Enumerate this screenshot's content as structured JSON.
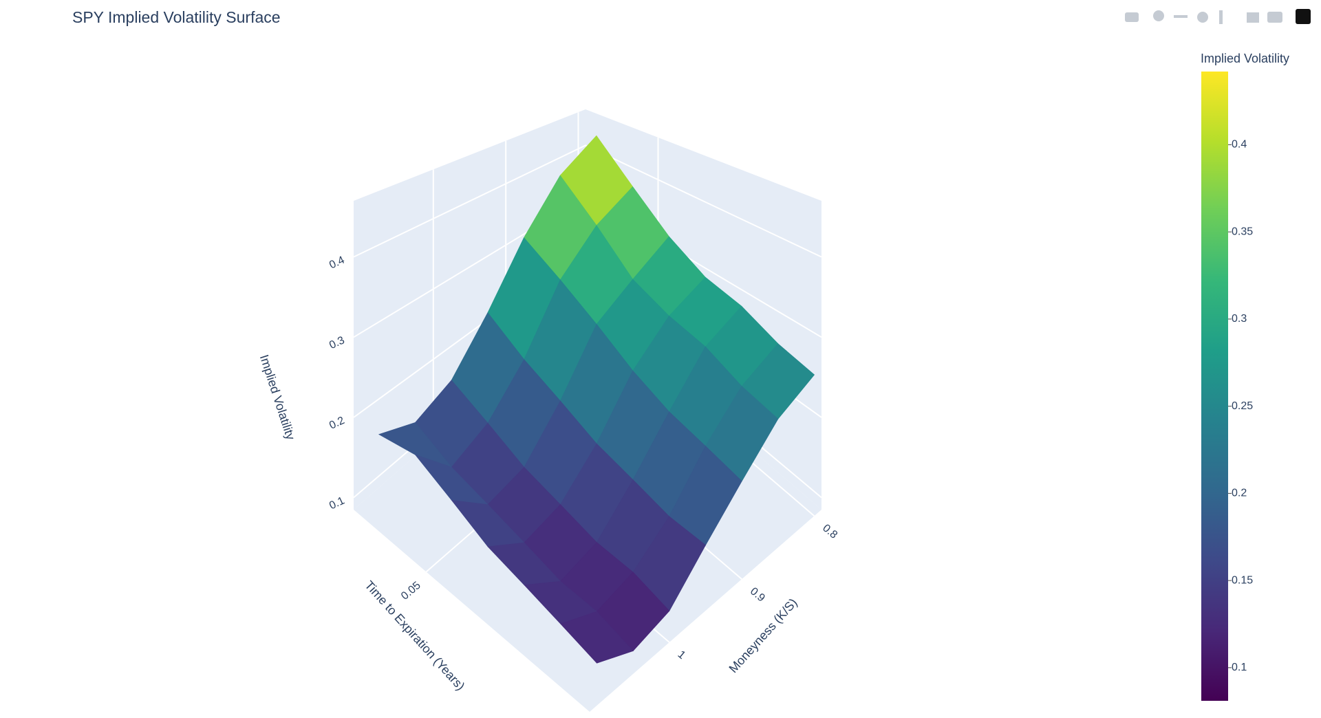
{
  "chart_data": {
    "type": "surface",
    "title": "SPY Implied Volatility Surface",
    "colorscale": "Viridis",
    "colorbar": {
      "title": "Implied Volatility",
      "cmin": 0.081,
      "cmax": 0.442,
      "ticks": [
        0.1,
        0.15,
        0.2,
        0.25,
        0.3,
        0.35,
        0.4
      ]
    },
    "xaxis_title": "Moneyness (K/S)",
    "yaxis_title": "Time to Expiration (Years)",
    "zaxis_title": "Implied Volatility",
    "xlim": [
      0.79,
      1.11
    ],
    "xticks": [
      0.8,
      0.9,
      1
    ],
    "ylim": [
      0.03,
      0.095
    ],
    "yticks": [
      0.05
    ],
    "zlim": [
      0.085,
      0.47
    ],
    "zticks": [
      0.1,
      0.2,
      0.3,
      0.4
    ],
    "x": [
      0.8,
      0.85,
      0.9,
      0.95,
      1.0,
      1.05,
      1.1
    ],
    "y": [
      0.035,
      0.045,
      0.055,
      0.065,
      0.075,
      0.085,
      0.095
    ],
    "z": [
      [
        0.44,
        0.4,
        0.33,
        0.25,
        0.19,
        0.17,
        0.19
      ],
      [
        0.38,
        0.35,
        0.3,
        0.22,
        0.17,
        0.15,
        0.2
      ],
      [
        0.33,
        0.3,
        0.27,
        0.2,
        0.15,
        0.14,
        0.18
      ],
      [
        0.3,
        0.28,
        0.24,
        0.18,
        0.14,
        0.13,
        0.16
      ],
      [
        0.29,
        0.27,
        0.22,
        0.17,
        0.13,
        0.12,
        0.15
      ],
      [
        0.27,
        0.25,
        0.21,
        0.16,
        0.13,
        0.12,
        0.14
      ],
      [
        0.26,
        0.24,
        0.2,
        0.16,
        0.12,
        0.11,
        0.13
      ]
    ],
    "grid": true
  }
}
